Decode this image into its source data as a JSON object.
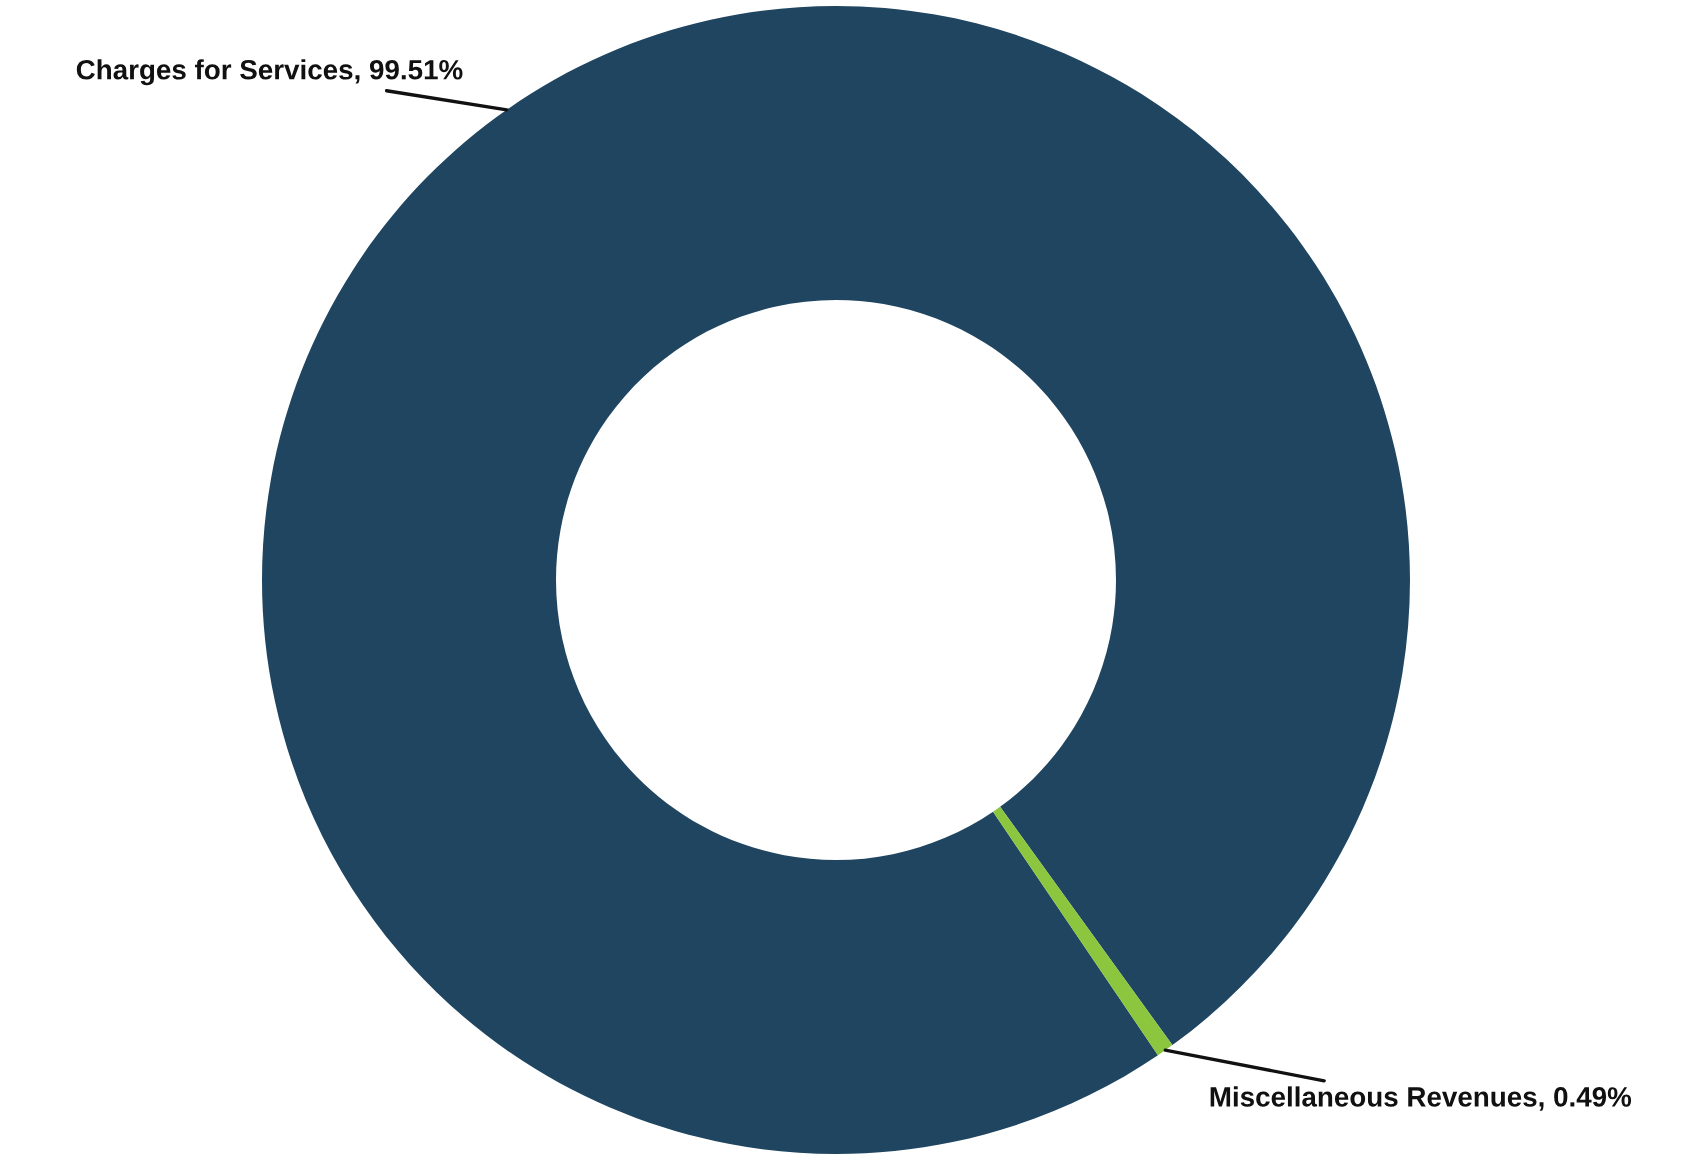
{
  "chart_data": {
    "type": "donut",
    "categories": [
      "Charges for Services",
      "Miscellaneous Revenues"
    ],
    "values": [
      99.51,
      0.49
    ],
    "value_labels": [
      "99.51%",
      "0.49%"
    ],
    "colors": [
      "#1f4560",
      "#8cc63f"
    ]
  }
}
